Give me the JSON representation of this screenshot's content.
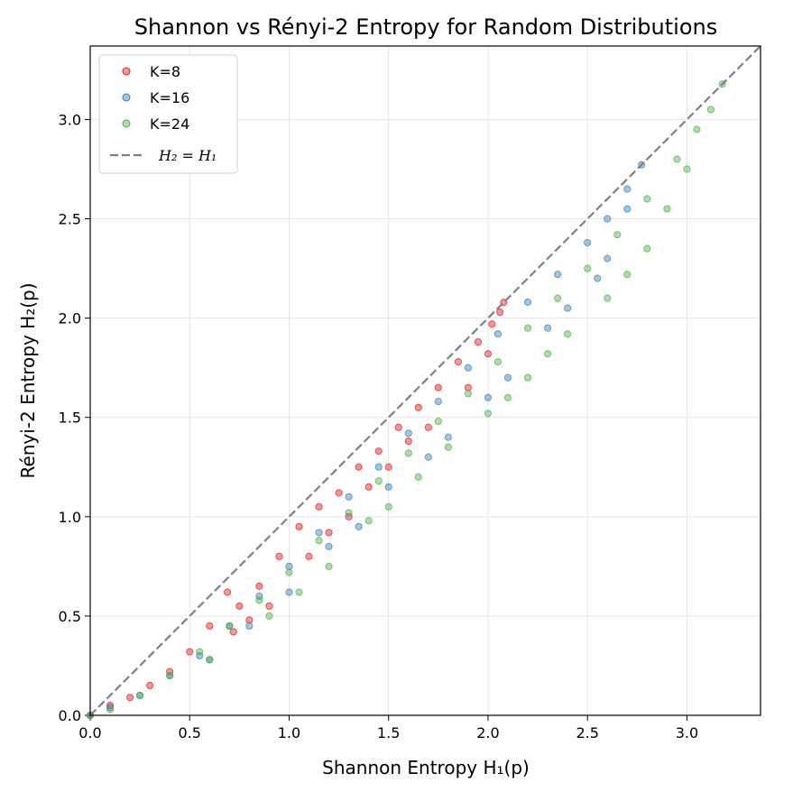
{
  "chart_data": {
    "type": "scatter",
    "title": "Shannon vs Rényi-2 Entropy for Random Distributions",
    "xlabel": "Shannon Entropy H₁(p)",
    "ylabel": "Rényi-2 Entropy H₂(p)",
    "xlim": [
      0.0,
      3.37
    ],
    "ylim": [
      0.0,
      3.37
    ],
    "grid": true,
    "legend_location": "top-left",
    "x_ticks": [
      "0.0",
      "0.5",
      "1.0",
      "1.5",
      "2.0",
      "2.5",
      "3.0"
    ],
    "y_ticks": [
      "0.0",
      "0.5",
      "1.0",
      "1.5",
      "2.0",
      "2.5",
      "3.0"
    ],
    "x_tick_values": [
      0.0,
      0.5,
      1.0,
      1.5,
      2.0,
      2.5,
      3.0
    ],
    "y_tick_values": [
      0.0,
      0.5,
      1.0,
      1.5,
      2.0,
      2.5,
      3.0
    ],
    "series": [
      {
        "name": "K=8",
        "color": "#e41a1c",
        "points": [
          [
            0.0,
            0.0
          ],
          [
            0.1,
            0.05
          ],
          [
            0.2,
            0.09
          ],
          [
            0.3,
            0.15
          ],
          [
            0.4,
            0.22
          ],
          [
            0.5,
            0.32
          ],
          [
            0.6,
            0.45
          ],
          [
            0.69,
            0.62
          ],
          [
            0.75,
            0.55
          ],
          [
            0.85,
            0.65
          ],
          [
            0.95,
            0.8
          ],
          [
            1.05,
            0.95
          ],
          [
            1.15,
            1.05
          ],
          [
            1.25,
            1.12
          ],
          [
            1.35,
            1.25
          ],
          [
            1.45,
            1.33
          ],
          [
            1.55,
            1.45
          ],
          [
            1.65,
            1.55
          ],
          [
            1.75,
            1.65
          ],
          [
            1.85,
            1.78
          ],
          [
            1.95,
            1.88
          ],
          [
            2.02,
            1.97
          ],
          [
            2.06,
            2.03
          ],
          [
            2.079,
            2.079
          ],
          [
            0.72,
            0.42
          ],
          [
            0.9,
            0.55
          ],
          [
            1.1,
            0.8
          ],
          [
            1.3,
            1.0
          ],
          [
            1.5,
            1.25
          ],
          [
            1.7,
            1.45
          ],
          [
            1.9,
            1.65
          ],
          [
            2.0,
            1.82
          ],
          [
            1.6,
            1.38
          ],
          [
            1.2,
            0.92
          ],
          [
            0.8,
            0.48
          ],
          [
            1.4,
            1.15
          ]
        ]
      },
      {
        "name": "K=16",
        "color": "#377eb8",
        "points": [
          [
            0.0,
            0.0
          ],
          [
            0.1,
            0.04
          ],
          [
            0.25,
            0.1
          ],
          [
            0.4,
            0.2
          ],
          [
            0.55,
            0.3
          ],
          [
            0.7,
            0.45
          ],
          [
            0.85,
            0.6
          ],
          [
            1.0,
            0.75
          ],
          [
            1.15,
            0.92
          ],
          [
            1.3,
            1.1
          ],
          [
            1.45,
            1.25
          ],
          [
            1.6,
            1.42
          ],
          [
            1.75,
            1.58
          ],
          [
            1.9,
            1.75
          ],
          [
            2.05,
            1.92
          ],
          [
            2.2,
            2.08
          ],
          [
            2.35,
            2.22
          ],
          [
            2.5,
            2.38
          ],
          [
            2.6,
            2.5
          ],
          [
            2.7,
            2.65
          ],
          [
            2.772,
            2.772
          ],
          [
            1.2,
            0.85
          ],
          [
            1.5,
            1.15
          ],
          [
            1.8,
            1.4
          ],
          [
            2.1,
            1.7
          ],
          [
            2.4,
            2.05
          ],
          [
            2.6,
            2.3
          ],
          [
            1.0,
            0.62
          ],
          [
            0.8,
            0.45
          ],
          [
            1.7,
            1.3
          ],
          [
            2.3,
            1.95
          ],
          [
            2.0,
            1.6
          ],
          [
            1.35,
            0.95
          ],
          [
            0.6,
            0.28
          ],
          [
            2.55,
            2.2
          ],
          [
            2.7,
            2.55
          ]
        ]
      },
      {
        "name": "K=24",
        "color": "#4daf4a",
        "points": [
          [
            0.0,
            0.0
          ],
          [
            0.1,
            0.03
          ],
          [
            0.25,
            0.1
          ],
          [
            0.4,
            0.2
          ],
          [
            0.55,
            0.32
          ],
          [
            0.7,
            0.45
          ],
          [
            0.85,
            0.58
          ],
          [
            1.0,
            0.72
          ],
          [
            1.15,
            0.88
          ],
          [
            1.3,
            1.02
          ],
          [
            1.45,
            1.18
          ],
          [
            1.6,
            1.32
          ],
          [
            1.75,
            1.48
          ],
          [
            1.9,
            1.62
          ],
          [
            2.05,
            1.78
          ],
          [
            2.2,
            1.95
          ],
          [
            2.35,
            2.1
          ],
          [
            2.5,
            2.25
          ],
          [
            2.65,
            2.42
          ],
          [
            2.8,
            2.6
          ],
          [
            2.95,
            2.8
          ],
          [
            3.05,
            2.95
          ],
          [
            3.12,
            3.05
          ],
          [
            3.178,
            3.178
          ],
          [
            0.9,
            0.5
          ],
          [
            1.2,
            0.75
          ],
          [
            1.5,
            1.05
          ],
          [
            1.8,
            1.35
          ],
          [
            2.1,
            1.6
          ],
          [
            2.3,
            1.82
          ],
          [
            2.6,
            2.1
          ],
          [
            2.8,
            2.35
          ],
          [
            2.9,
            2.55
          ],
          [
            3.0,
            2.75
          ],
          [
            1.65,
            1.2
          ],
          [
            2.0,
            1.52
          ],
          [
            2.2,
            1.7
          ],
          [
            2.4,
            1.92
          ],
          [
            0.6,
            0.28
          ],
          [
            1.4,
            0.98
          ],
          [
            2.7,
            2.22
          ],
          [
            1.05,
            0.62
          ]
        ]
      }
    ],
    "reference_line": {
      "name": "H₂ = H₁",
      "color": "#808080",
      "x": [
        0.0,
        3.37
      ],
      "y": [
        0.0,
        3.37
      ]
    }
  },
  "legend": {
    "items": [
      {
        "label": "K=8",
        "color": "#e41a1c"
      },
      {
        "label": "K=16",
        "color": "#377eb8"
      },
      {
        "label": "K=24",
        "color": "#4daf4a"
      }
    ],
    "line_label": "H₂ = H₁"
  }
}
